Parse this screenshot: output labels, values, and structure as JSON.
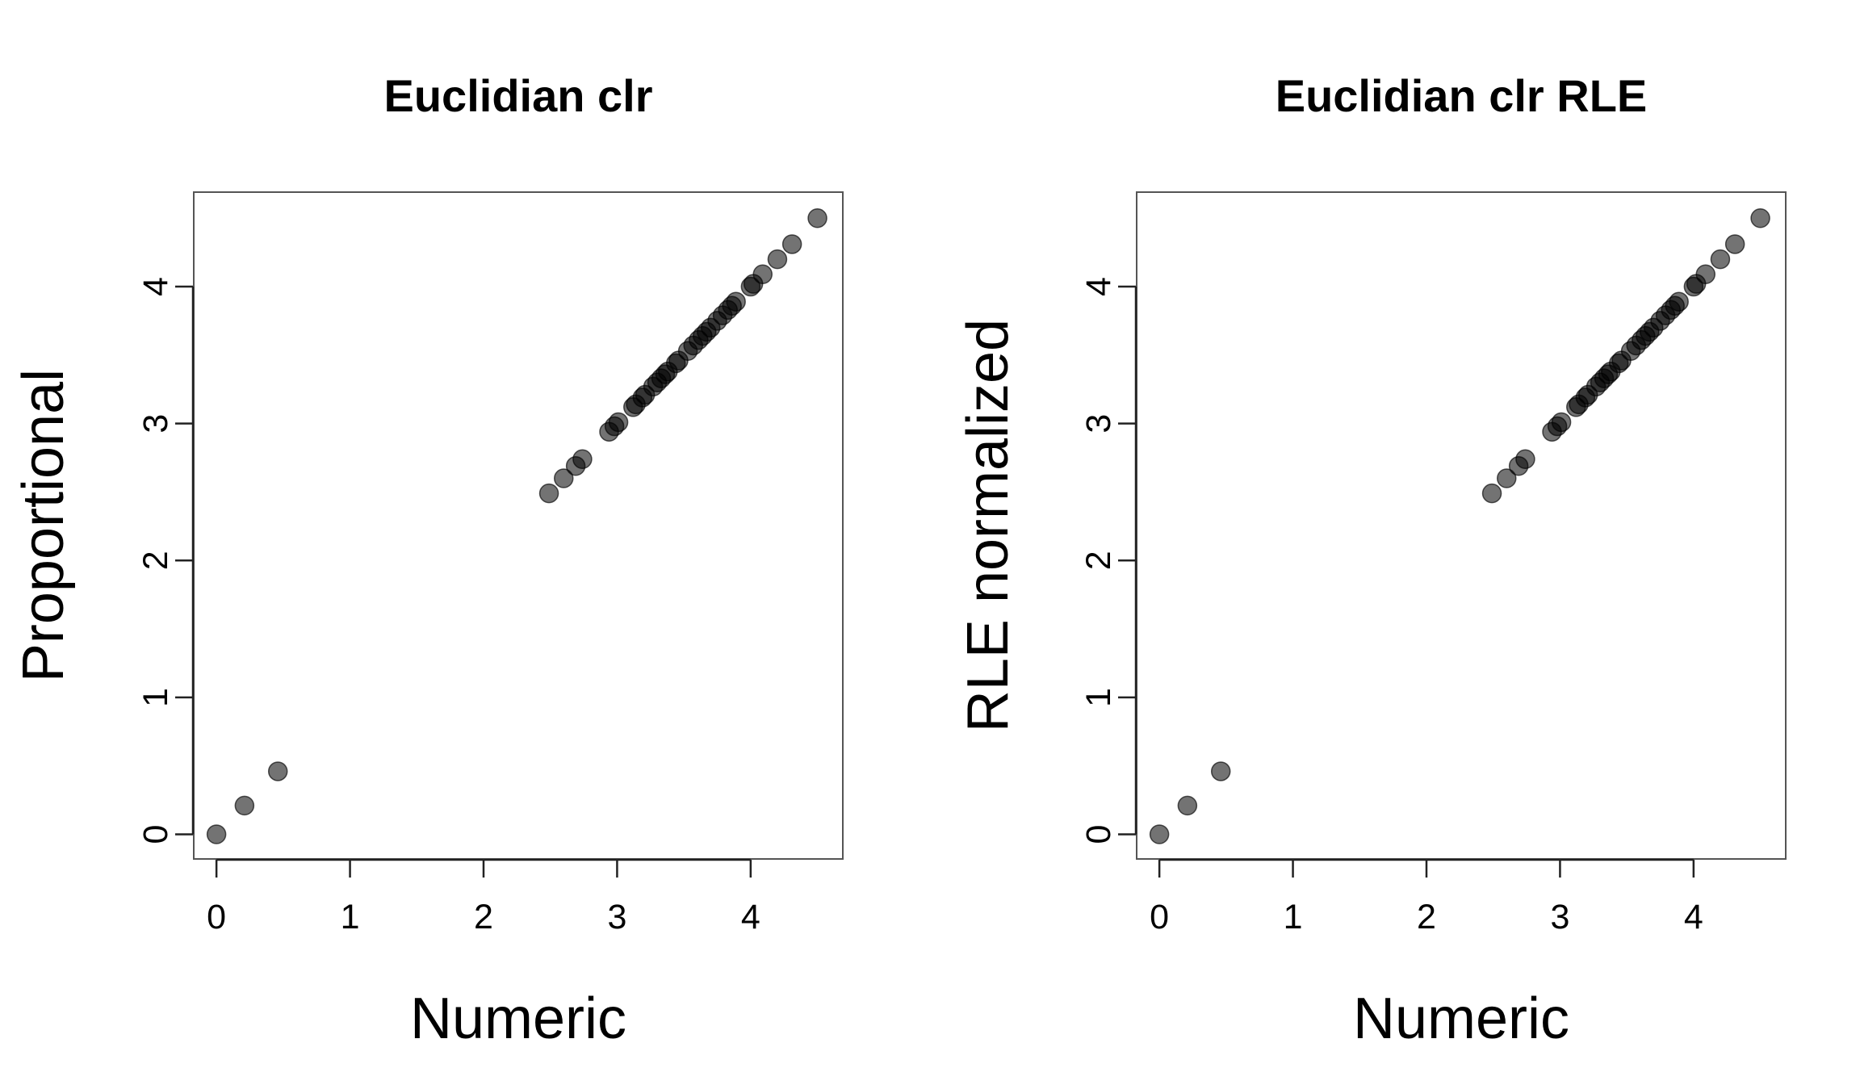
{
  "chart_data": [
    {
      "type": "scatter",
      "title": "Euclidian clr",
      "xlabel": "Numeric",
      "ylabel": "Proportional",
      "xlim": [
        -0.17,
        4.69
      ],
      "ylim": [
        -0.18,
        4.69
      ],
      "xticks": [
        0,
        1,
        2,
        3,
        4
      ],
      "yticks": [
        0,
        1,
        2,
        3,
        4
      ],
      "grid": false,
      "x": [
        0.0,
        0.21,
        0.46,
        2.49,
        2.6,
        2.69,
        2.74,
        2.94,
        2.98,
        3.01,
        3.12,
        3.14,
        3.19,
        3.21,
        3.27,
        3.3,
        3.33,
        3.36,
        3.38,
        3.44,
        3.46,
        3.53,
        3.57,
        3.61,
        3.64,
        3.67,
        3.7,
        3.75,
        3.79,
        3.83,
        3.86,
        3.89,
        4.0,
        4.02,
        4.09,
        4.2,
        4.31,
        4.5
      ],
      "y": [
        0.0,
        0.21,
        0.46,
        2.49,
        2.6,
        2.69,
        2.74,
        2.94,
        2.98,
        3.01,
        3.12,
        3.14,
        3.19,
        3.21,
        3.27,
        3.3,
        3.33,
        3.36,
        3.38,
        3.44,
        3.46,
        3.53,
        3.57,
        3.61,
        3.64,
        3.67,
        3.7,
        3.75,
        3.79,
        3.83,
        3.86,
        3.89,
        4.0,
        4.02,
        4.09,
        4.2,
        4.31,
        4.5
      ]
    },
    {
      "type": "scatter",
      "title": "Euclidian clr RLE",
      "xlabel": "Numeric",
      "ylabel": "RLE normalized",
      "xlim": [
        -0.17,
        4.69
      ],
      "ylim": [
        -0.18,
        4.69
      ],
      "xticks": [
        0,
        1,
        2,
        3,
        4
      ],
      "yticks": [
        0,
        1,
        2,
        3,
        4
      ],
      "grid": false,
      "x": [
        0.0,
        0.21,
        0.46,
        2.49,
        2.6,
        2.69,
        2.74,
        2.94,
        2.98,
        3.01,
        3.12,
        3.14,
        3.19,
        3.21,
        3.27,
        3.3,
        3.33,
        3.36,
        3.38,
        3.44,
        3.46,
        3.53,
        3.57,
        3.61,
        3.64,
        3.67,
        3.7,
        3.75,
        3.79,
        3.83,
        3.86,
        3.89,
        4.0,
        4.02,
        4.09,
        4.2,
        4.31,
        4.5
      ],
      "y": [
        0.0,
        0.21,
        0.46,
        2.49,
        2.6,
        2.69,
        2.74,
        2.94,
        2.98,
        3.01,
        3.12,
        3.14,
        3.19,
        3.21,
        3.27,
        3.3,
        3.33,
        3.36,
        3.38,
        3.44,
        3.46,
        3.53,
        3.57,
        3.61,
        3.64,
        3.67,
        3.7,
        3.75,
        3.79,
        3.83,
        3.86,
        3.89,
        4.0,
        4.02,
        4.09,
        4.2,
        4.31,
        4.5
      ]
    }
  ]
}
